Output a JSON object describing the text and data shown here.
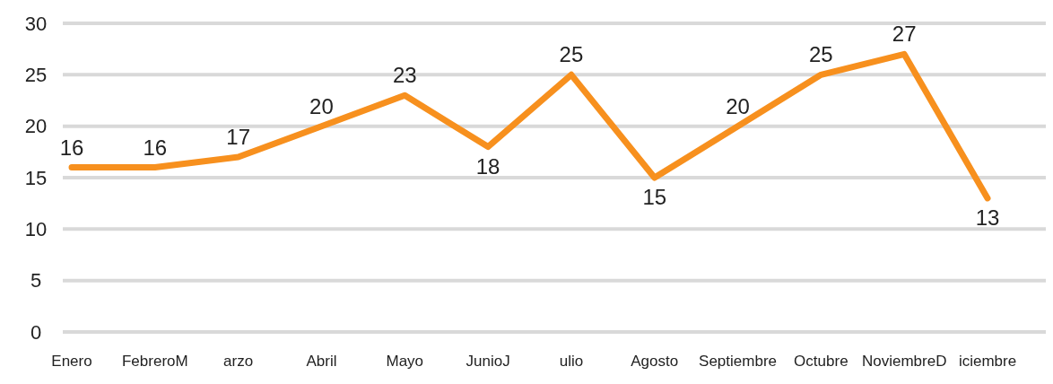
{
  "chart_data": {
    "type": "line",
    "categories": [
      "Enero",
      "FebreroM",
      "arzo",
      "Abril",
      "Mayo",
      "JunioJ",
      "ulio",
      "Agosto",
      "Septiembre",
      "Octubre",
      "NoviembreD",
      "iciembre"
    ],
    "series": [
      {
        "color": "#f7901e",
        "values": [
          16,
          16,
          17,
          20,
          23,
          18,
          25,
          15,
          20,
          25,
          27,
          13
        ]
      }
    ],
    "ylim": [
      0,
      30
    ],
    "yticks": [
      0,
      5,
      10,
      15,
      20,
      25,
      30
    ],
    "grid": "y",
    "data_labels": true,
    "marker": "none"
  }
}
